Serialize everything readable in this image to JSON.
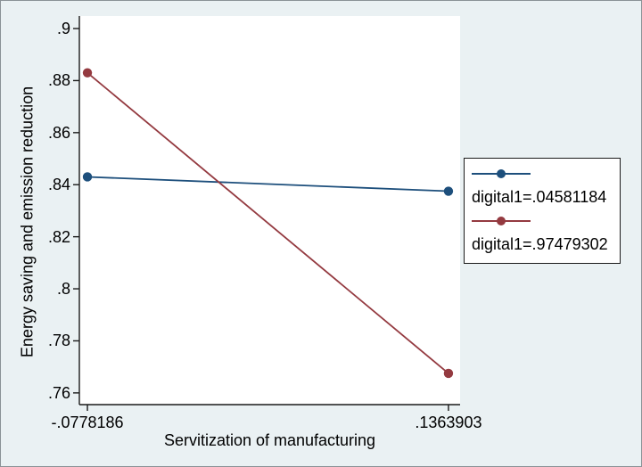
{
  "colors": {
    "background": "#eaf1f3",
    "plot_background": "#ffffff",
    "axis": "#1a1a1a",
    "text": "#000000",
    "legend_border": "#1a1a1a"
  },
  "chart_data": {
    "type": "line",
    "title": "",
    "xlabel": "Servitization of manufacturing",
    "ylabel": "Energy saving and emission reduction",
    "xlim": [
      -0.0826,
      0.1433
    ],
    "ylim": [
      0.7555,
      0.9048
    ],
    "grid": false,
    "legend_position": "right-outside",
    "x_ticks": [
      {
        "value": -0.0778186,
        "label": "-.0778186"
      },
      {
        "value": 0.1363903,
        "label": ".1363903"
      }
    ],
    "y_ticks": [
      {
        "value": 0.9,
        "label": ".9"
      },
      {
        "value": 0.88,
        "label": ".88"
      },
      {
        "value": 0.86,
        "label": ".86"
      },
      {
        "value": 0.84,
        "label": ".84"
      },
      {
        "value": 0.82,
        "label": ".82"
      },
      {
        "value": 0.8,
        "label": ".8"
      },
      {
        "value": 0.78,
        "label": ".78"
      },
      {
        "value": 0.76,
        "label": ".76"
      }
    ],
    "series": [
      {
        "name": "digital1=.04581184",
        "color": "#1d4f7c",
        "marker": "circle",
        "points": [
          {
            "x": -0.0778186,
            "y": 0.843
          },
          {
            "x": 0.1363903,
            "y": 0.8375
          }
        ]
      },
      {
        "name": "digital1=.97479302",
        "color": "#943a40",
        "marker": "circle",
        "points": [
          {
            "x": -0.0778186,
            "y": 0.883
          },
          {
            "x": 0.1363903,
            "y": 0.7675
          }
        ]
      }
    ]
  }
}
